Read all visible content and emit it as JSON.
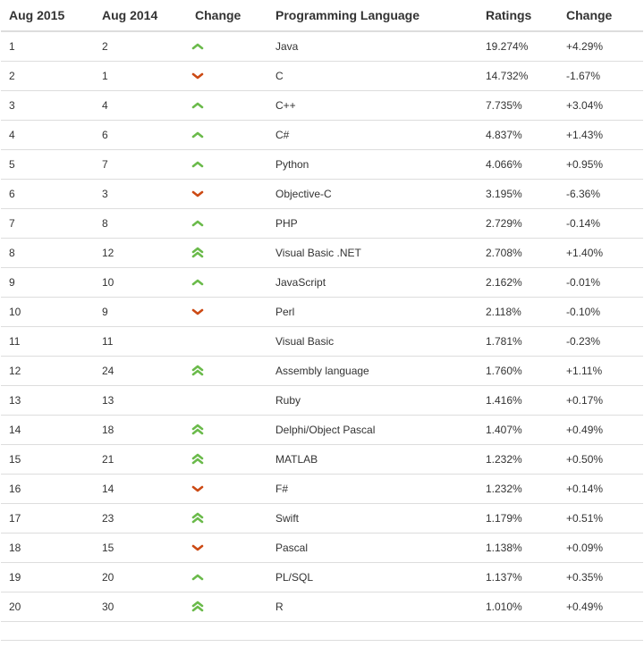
{
  "table": {
    "headers": [
      "Aug 2015",
      "Aug 2014",
      "Change",
      "Programming Language",
      "Ratings",
      "Change"
    ],
    "colors": {
      "up": "#6aba4a",
      "down": "#cc4a14"
    },
    "rows": [
      {
        "rank_2015": "1",
        "rank_2014": "2",
        "change_icon": "up",
        "language": "Java",
        "rating": "19.274%",
        "delta": "+4.29%"
      },
      {
        "rank_2015": "2",
        "rank_2014": "1",
        "change_icon": "down",
        "language": "C",
        "rating": "14.732%",
        "delta": "-1.67%"
      },
      {
        "rank_2015": "3",
        "rank_2014": "4",
        "change_icon": "up",
        "language": "C++",
        "rating": "7.735%",
        "delta": "+3.04%"
      },
      {
        "rank_2015": "4",
        "rank_2014": "6",
        "change_icon": "up",
        "language": "C#",
        "rating": "4.837%",
        "delta": "+1.43%"
      },
      {
        "rank_2015": "5",
        "rank_2014": "7",
        "change_icon": "up",
        "language": "Python",
        "rating": "4.066%",
        "delta": "+0.95%"
      },
      {
        "rank_2015": "6",
        "rank_2014": "3",
        "change_icon": "down",
        "language": "Objective-C",
        "rating": "3.195%",
        "delta": "-6.36%"
      },
      {
        "rank_2015": "7",
        "rank_2014": "8",
        "change_icon": "up",
        "language": "PHP",
        "rating": "2.729%",
        "delta": "-0.14%"
      },
      {
        "rank_2015": "8",
        "rank_2014": "12",
        "change_icon": "double-up",
        "language": "Visual Basic .NET",
        "rating": "2.708%",
        "delta": "+1.40%"
      },
      {
        "rank_2015": "9",
        "rank_2014": "10",
        "change_icon": "up",
        "language": "JavaScript",
        "rating": "2.162%",
        "delta": "-0.01%"
      },
      {
        "rank_2015": "10",
        "rank_2014": "9",
        "change_icon": "down",
        "language": "Perl",
        "rating": "2.118%",
        "delta": "-0.10%"
      },
      {
        "rank_2015": "11",
        "rank_2014": "11",
        "change_icon": "none",
        "language": "Visual Basic",
        "rating": "1.781%",
        "delta": "-0.23%"
      },
      {
        "rank_2015": "12",
        "rank_2014": "24",
        "change_icon": "double-up",
        "language": "Assembly language",
        "rating": "1.760%",
        "delta": "+1.11%"
      },
      {
        "rank_2015": "13",
        "rank_2014": "13",
        "change_icon": "none",
        "language": "Ruby",
        "rating": "1.416%",
        "delta": "+0.17%"
      },
      {
        "rank_2015": "14",
        "rank_2014": "18",
        "change_icon": "double-up",
        "language": "Delphi/Object Pascal",
        "rating": "1.407%",
        "delta": "+0.49%"
      },
      {
        "rank_2015": "15",
        "rank_2014": "21",
        "change_icon": "double-up",
        "language": "MATLAB",
        "rating": "1.232%",
        "delta": "+0.50%"
      },
      {
        "rank_2015": "16",
        "rank_2014": "14",
        "change_icon": "down",
        "language": "F#",
        "rating": "1.232%",
        "delta": "+0.14%"
      },
      {
        "rank_2015": "17",
        "rank_2014": "23",
        "change_icon": "double-up",
        "language": "Swift",
        "rating": "1.179%",
        "delta": "+0.51%"
      },
      {
        "rank_2015": "18",
        "rank_2014": "15",
        "change_icon": "down",
        "language": "Pascal",
        "rating": "1.138%",
        "delta": "+0.09%"
      },
      {
        "rank_2015": "19",
        "rank_2014": "20",
        "change_icon": "up",
        "language": "PL/SQL",
        "rating": "1.137%",
        "delta": "+0.35%"
      },
      {
        "rank_2015": "20",
        "rank_2014": "30",
        "change_icon": "double-up",
        "language": "R",
        "rating": "1.010%",
        "delta": "+0.49%"
      }
    ]
  }
}
